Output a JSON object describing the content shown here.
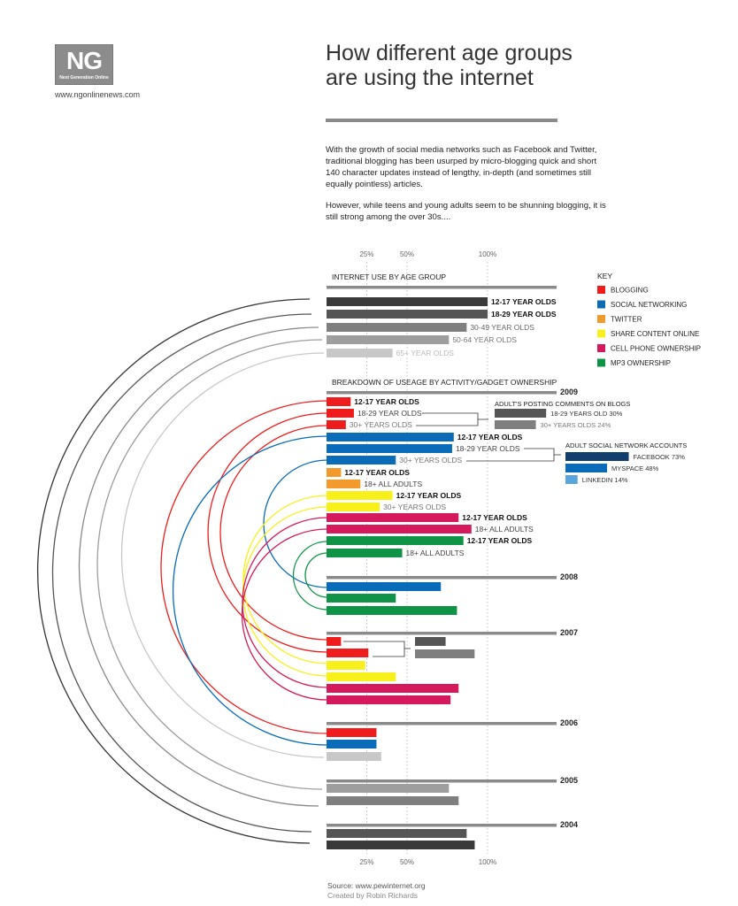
{
  "header": {
    "logo_text": "NG",
    "logo_subtext": "Next Generation Online",
    "logo_url": "www.ngonlinenews.com",
    "title_line1": "How different age groups",
    "title_line2": "are using the internet",
    "intro_p1": "With the growth of social media networks such as Facebook and Twitter, traditional blogging has been usurped by micro-blogging quick and short 140 character updates instead of lengthy, in-depth (and sometimes still equally pointless) articles.",
    "intro_p2": "However, while teens and young adults seem to be shunning blogging, it is still strong among the over 30s...."
  },
  "footer": {
    "source": "Source: www.pewinternet.org",
    "credit": "Created by Robin Richards"
  },
  "colors": {
    "blogging": "#ee1c1c",
    "social_networking": "#0a6bb8",
    "twitter": "#f39a2c",
    "share_content": "#f7f01a",
    "cell_phone": "#d41a5c",
    "mp3": "#0e9347",
    "grey1": "#3a3a3a",
    "grey2": "#555555",
    "grey3": "#7f7f7f",
    "grey4": "#9e9e9e",
    "grey5": "#c8c8c8",
    "rule": "#8a8a8a",
    "facebook": "#123e6e",
    "linkedin": "#5aa6dc"
  },
  "chart_data": {
    "type": "bar",
    "orientation": "horizontal",
    "axis_ticks": [
      "25%",
      "50%",
      "100%"
    ],
    "xlim": [
      0,
      100
    ],
    "grid": "dotted vertical lines at 25%, 50%, 100%",
    "key": {
      "title": "KEY",
      "items": [
        {
          "label": "BLOGGING",
          "color_key": "blogging"
        },
        {
          "label": "SOCIAL NETWORKING",
          "color_key": "social_networking"
        },
        {
          "label": "TWITTER",
          "color_key": "twitter"
        },
        {
          "label": "SHARE CONTENT ONLINE",
          "color_key": "share_content"
        },
        {
          "label": "CELL PHONE OWNERSHIP",
          "color_key": "cell_phone"
        },
        {
          "label": "MP3 OWNERSHIP",
          "color_key": "mp3"
        }
      ]
    },
    "sections": [
      {
        "title": "INTERNET USE BY AGE GROUP",
        "year": "",
        "bars": [
          {
            "label": "12-17 YEAR OLDS",
            "value": 100,
            "color_key": "grey1",
            "label_style": "dark"
          },
          {
            "label": "18-29 YEAR OLDS",
            "value": 100,
            "color_key": "grey2",
            "label_style": "dark"
          },
          {
            "label": "30-49 YEAR OLDS",
            "value": 87,
            "color_key": "grey3",
            "label_style": "mid"
          },
          {
            "label": "50-64 YEAR OLDS",
            "value": 76,
            "color_key": "grey4",
            "label_style": "light"
          },
          {
            "label": "65+ YEAR OLDS",
            "value": 41,
            "color_key": "grey5",
            "label_style": "lighter"
          }
        ]
      },
      {
        "title": "BREAKDOWN OF USEAGE BY ACTIVITY/GADGET OWNERSHIP",
        "year": "2009",
        "bars": [
          {
            "label": "12-17 YEAR OLDS",
            "value": 15,
            "color_key": "blogging",
            "label_style": "dark"
          },
          {
            "label": "18-29 YEAR OLDS",
            "value": 17,
            "color_key": "blogging",
            "label_style": "mid2"
          },
          {
            "label": "30+ YEARS OLDS",
            "value": 12,
            "color_key": "blogging",
            "label_style": "light"
          },
          {
            "label": "12-17 YEAR OLDS",
            "value": 79,
            "color_key": "social_networking",
            "label_style": "dark"
          },
          {
            "label": "18-29 YEAR OLDS",
            "value": 78,
            "color_key": "social_networking",
            "label_style": "mid2"
          },
          {
            "label": "30+ YEARS OLDS",
            "value": 43,
            "color_key": "social_networking",
            "label_style": "light"
          },
          {
            "label": "12-17 YEAR OLDS",
            "value": 9,
            "color_key": "twitter",
            "label_style": "dark"
          },
          {
            "label": "18+ ALL ADULTS",
            "value": 21,
            "color_key": "twitter",
            "label_style": "mid2"
          },
          {
            "label": "12-17 YEAR OLDS",
            "value": 41,
            "color_key": "share_content",
            "label_style": "dark"
          },
          {
            "label": "30+ YEARS OLDS",
            "value": 33,
            "color_key": "share_content",
            "label_style": "light"
          },
          {
            "label": "12-17 YEAR OLDS",
            "value": 82,
            "color_key": "cell_phone",
            "label_style": "dark"
          },
          {
            "label": "18+ ALL ADULTS",
            "value": 90,
            "color_key": "cell_phone",
            "label_style": "mid2"
          },
          {
            "label": "12-17 YEAR OLDS",
            "value": 85,
            "color_key": "mp3",
            "label_style": "dark"
          },
          {
            "label": "18+ ALL ADULTS",
            "value": 47,
            "color_key": "mp3",
            "label_style": "mid2"
          }
        ]
      },
      {
        "title": "",
        "year": "2008",
        "bars": [
          {
            "label": "",
            "value": 71,
            "color_key": "social_networking"
          },
          {
            "label": "",
            "value": 43,
            "color_key": "mp3"
          },
          {
            "label": "",
            "value": 81,
            "color_key": "mp3"
          }
        ]
      },
      {
        "title": "",
        "year": "2007",
        "bars": [
          {
            "label": "",
            "value": 9,
            "color_key": "blogging"
          },
          {
            "label": "",
            "value": 26,
            "color_key": "blogging"
          },
          {
            "label": "",
            "value": 24,
            "color_key": "share_content"
          },
          {
            "label": "",
            "value": 43,
            "color_key": "share_content"
          },
          {
            "label": "",
            "value": 82,
            "color_key": "cell_phone"
          },
          {
            "label": "",
            "value": 77,
            "color_key": "cell_phone"
          }
        ]
      },
      {
        "title": "",
        "year": "2006",
        "bars": [
          {
            "label": "",
            "value": 31,
            "color_key": "blogging"
          },
          {
            "label": "",
            "value": 31,
            "color_key": "social_networking"
          },
          {
            "label": "",
            "value": 34,
            "color_key": "grey5"
          }
        ]
      },
      {
        "title": "",
        "year": "2005",
        "bars": [
          {
            "label": "",
            "value": 76,
            "color_key": "grey4"
          },
          {
            "label": "",
            "value": 82,
            "color_key": "grey3"
          }
        ]
      },
      {
        "title": "",
        "year": "2004",
        "bars": [
          {
            "label": "",
            "value": 87,
            "color_key": "grey2"
          },
          {
            "label": "",
            "value": 92,
            "color_key": "grey1"
          }
        ]
      }
    ],
    "callouts": [
      {
        "title": "ADULT'S POSTING COMMENTS ON BLOGS",
        "items": [
          {
            "label": "18-29 YEARS OLD",
            "value": 30,
            "value_label": "30%",
            "color_key": "grey2"
          },
          {
            "label": "30+ YEARS OLDS",
            "value": 24,
            "value_label": "24%",
            "color_key": "grey3"
          }
        ]
      },
      {
        "title": "ADULT SOCIAL NETWORK ACCOUNTS",
        "items": [
          {
            "label": "FACEBOOK",
            "value": 73,
            "value_label": "73%",
            "color_key": "facebook"
          },
          {
            "label": "MYSPACE",
            "value": 48,
            "value_label": "48%",
            "color_key": "social_networking"
          },
          {
            "label": "LINKEDIN",
            "value": 14,
            "value_label": "14%",
            "color_key": "linkedin"
          }
        ]
      },
      {
        "title": "",
        "items": [
          {
            "label": "",
            "value": 19,
            "value_label": "",
            "color_key": "grey2"
          },
          {
            "label": "",
            "value": 37,
            "value_label": "",
            "color_key": "grey3"
          }
        ]
      }
    ]
  }
}
